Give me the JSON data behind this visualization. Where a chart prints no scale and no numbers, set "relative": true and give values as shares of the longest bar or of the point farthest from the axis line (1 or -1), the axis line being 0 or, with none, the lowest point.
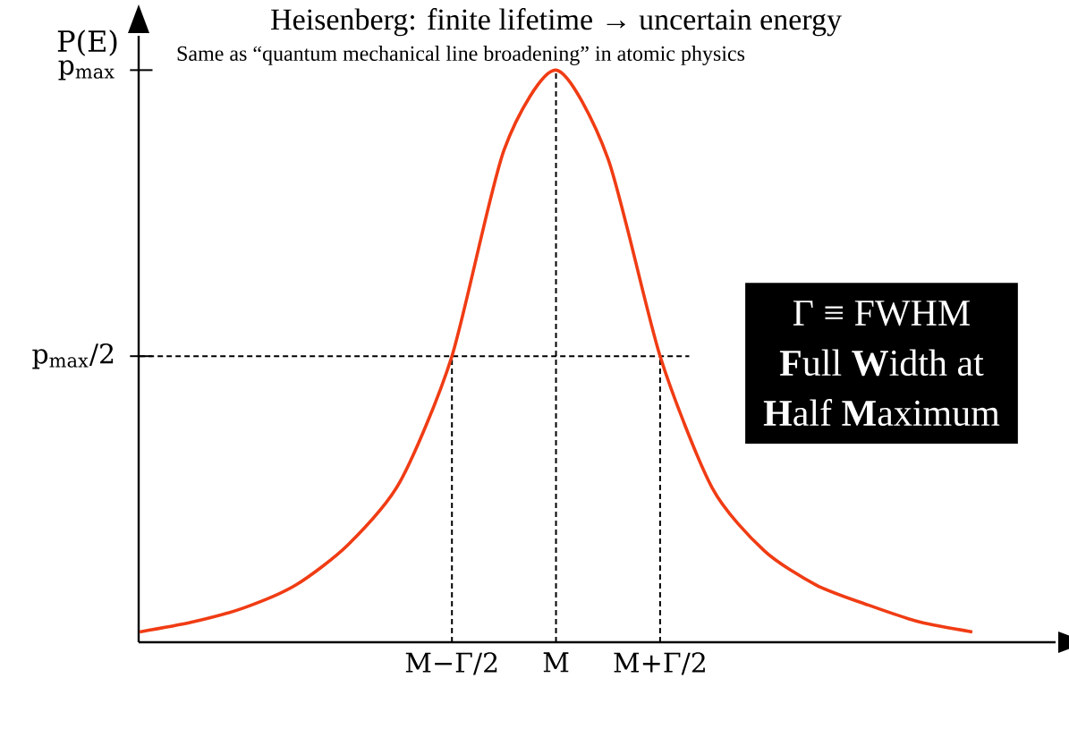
{
  "chart_data": {
    "type": "line",
    "title": "Heisenberg: finite lifetime → uncertain energy",
    "subtitle": "Same as “quantum mechanical line broadening” in atomic physics",
    "ylabel": "P(E)",
    "relative": true,
    "categories": [
      null,
      null,
      null,
      null,
      null,
      null,
      "M−Γ/2",
      null,
      "M",
      null,
      "M+Γ/2",
      null,
      null,
      null,
      null,
      null,
      null
    ],
    "series": [
      {
        "color": "#f03c14",
        "values": [
          0.018,
          0.035,
          0.06,
          0.1,
          0.17,
          0.28,
          0.5,
          0.86,
          1.0,
          0.845,
          0.5,
          0.27,
          0.16,
          0.1,
          0.065,
          0.035,
          0.018
        ]
      }
    ],
    "ref_lines": [
      {
        "axis": "x",
        "value": "M−Γ/2",
        "color": "#000000",
        "line_style": "dashed",
        "label": null
      },
      {
        "axis": "x",
        "value": "M",
        "color": "#000000",
        "line_style": "dashed"
      },
      {
        "axis": "x",
        "value": "M+Γ/2",
        "color": "#000000",
        "line_style": "dashed"
      },
      {
        "axis": "y",
        "value": 0.5,
        "color": "#000000",
        "line_style": "dashed",
        "label": "p$_{max}$/2"
      }
    ],
    "annotations": [
      "p$_{max}$",
      "Γ ≡ FWHM",
      "**F**ull **W**idth at",
      "**H**alf **M**aximum"
    ],
    "grid": false,
    "marker": "none",
    "line_style": "solid"
  }
}
